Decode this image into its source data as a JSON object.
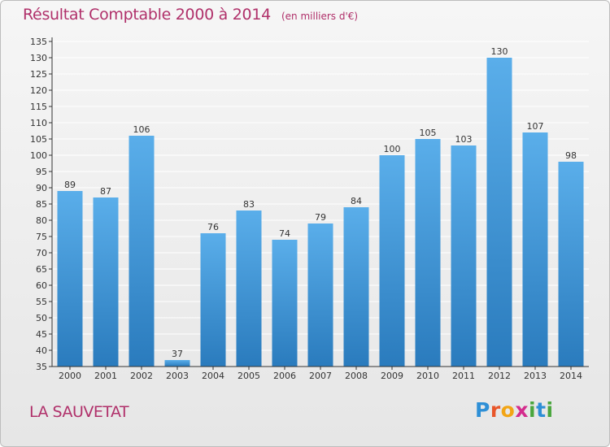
{
  "header": {
    "title": "Résultat Comptable 2000 à 2014",
    "subtitle": "(en milliers d'€)"
  },
  "footer": {
    "place": "LA SAUVETAT",
    "logo_letters": [
      "P",
      "r",
      "o",
      "x",
      "i",
      "t",
      "i"
    ],
    "logo_colors": [
      "#2e8fd6",
      "#e8562a",
      "#f2a515",
      "#d42c8d",
      "#4aa63e",
      "#2e8fd6",
      "#4aa63e"
    ]
  },
  "colors": {
    "bar_top": "#5aaeea",
    "bar_bottom": "#2a7bbd",
    "grid": "#ffffff",
    "axis": "#333333",
    "accent": "#b0306a"
  },
  "chart_data": {
    "type": "bar",
    "categories": [
      "2000",
      "2001",
      "2002",
      "2003",
      "2004",
      "2005",
      "2006",
      "2007",
      "2008",
      "2009",
      "2010",
      "2011",
      "2012",
      "2013",
      "2014"
    ],
    "values": [
      89,
      87,
      106,
      37,
      76,
      83,
      74,
      79,
      84,
      100,
      105,
      103,
      130,
      107,
      98
    ],
    "data_labels": [
      "89",
      "87",
      "106",
      "37",
      "76",
      "83",
      "74",
      "79",
      "84",
      "100",
      "105",
      "103",
      "130",
      "107",
      "98"
    ],
    "yticks": [
      35,
      40,
      45,
      50,
      55,
      60,
      65,
      70,
      75,
      80,
      85,
      90,
      95,
      100,
      105,
      110,
      115,
      120,
      125,
      130,
      135
    ],
    "ylim": [
      35,
      135
    ],
    "grid": true,
    "legend": "none"
  }
}
